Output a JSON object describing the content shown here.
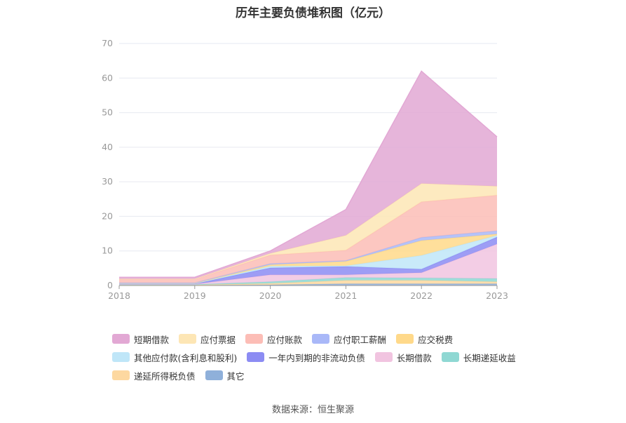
{
  "title": "历年主要负债堆积图（亿元）",
  "source": "数据来源：恒生聚源",
  "chart_data": {
    "type": "area",
    "stacked": true,
    "title": "历年主要负债堆积图（亿元）",
    "x": [
      "2018",
      "2019",
      "2020",
      "2021",
      "2022",
      "2023"
    ],
    "ylim": [
      0,
      70
    ],
    "yticks": [
      "0",
      "10",
      "20",
      "30",
      "40",
      "50",
      "60",
      "70"
    ],
    "grid": true,
    "legend_position": "bottom",
    "series": [
      {
        "name": "其它",
        "color": "#8fb0da",
        "values": [
          0.1,
          0.1,
          0.2,
          0.5,
          0.5,
          0.5
        ]
      },
      {
        "name": "递延所得税负债",
        "color": "#fdd8a0",
        "values": [
          0.1,
          0.1,
          0.4,
          1.0,
          1.0,
          0.6
        ]
      },
      {
        "name": "长期递延收益",
        "color": "#8fd8d3",
        "values": [
          0.1,
          0.1,
          0.5,
          0.8,
          0.7,
          0.9
        ]
      },
      {
        "name": "长期借款",
        "color": "#f1c4e0",
        "values": [
          0.1,
          0.1,
          2.0,
          0.8,
          1.5,
          10.0
        ]
      },
      {
        "name": "一年内到期的非流动负债",
        "color": "#8c8cf3",
        "values": [
          0.1,
          0.1,
          2.0,
          2.4,
          1.0,
          2.0
        ]
      },
      {
        "name": "其他应付款(含利息和股利)",
        "color": "#bfe6f8",
        "values": [
          0.1,
          0.1,
          0.5,
          0.2,
          4.0,
          0.5
        ]
      },
      {
        "name": "应交税费",
        "color": "#ffd98a",
        "values": [
          0.1,
          0.1,
          0.4,
          1.3,
          4.3,
          0.4
        ]
      },
      {
        "name": "应付职工薪酬",
        "color": "#a9b8f8",
        "values": [
          0.1,
          0.1,
          0.3,
          0.2,
          0.9,
          0.9
        ]
      },
      {
        "name": "应付账款",
        "color": "#fcbdb6",
        "values": [
          1.0,
          1.0,
          2.5,
          3.0,
          10.3,
          10.3
        ]
      },
      {
        "name": "应付票据",
        "color": "#fde6b5",
        "values": [
          0.1,
          0.1,
          0.5,
          4.3,
          5.3,
          2.6
        ]
      },
      {
        "name": "短期借款",
        "color": "#e2a8d4",
        "values": [
          0.5,
          0.5,
          0.7,
          7.5,
          32.5,
          14.3
        ]
      }
    ]
  },
  "legend_order": [
    [
      "短期借款",
      "应付票据",
      "应付账款",
      "应付职工薪酬",
      "应交税费"
    ],
    [
      "其他应付款(含利息和股利)",
      "一年内到期的非流动负债",
      "长期借款",
      "长期递延收益"
    ],
    [
      "递延所得税负债",
      "其它"
    ]
  ]
}
